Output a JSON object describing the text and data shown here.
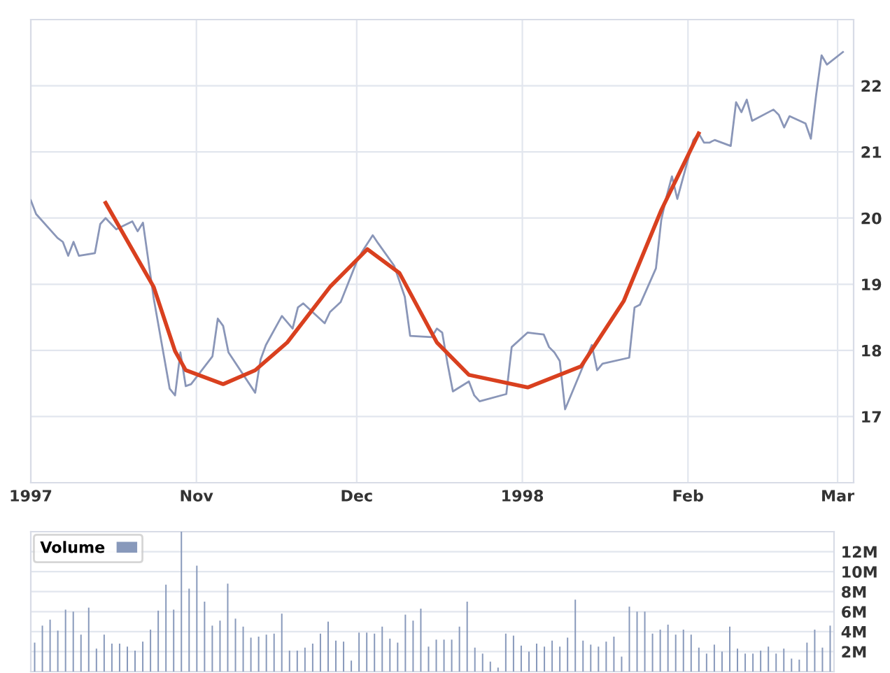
{
  "chart_data": [
    {
      "type": "line",
      "xlim": [
        "1997-10-01",
        "1998-03-04"
      ],
      "ylim": [
        16,
        23
      ],
      "yticks": [
        17,
        18,
        19,
        20,
        21,
        22
      ],
      "grid": true,
      "marker": "none",
      "line_style": "solid",
      "xticks": [
        {
          "value": "1997-10-01",
          "label": "1997"
        },
        {
          "value": "1997-11-01",
          "label": "Nov"
        },
        {
          "value": "1997-12-01",
          "label": "Dec"
        },
        {
          "value": "1998-01-01",
          "label": "1998"
        },
        {
          "value": "1998-02-01",
          "label": "Feb"
        },
        {
          "value": "1998-03-01",
          "label": "Mar"
        }
      ],
      "series": [
        {
          "color": "#8a96b8",
          "x": [
            "1997-10-01",
            "1997-10-02",
            "1997-10-06",
            "1997-10-07",
            "1997-10-08",
            "1997-10-09",
            "1997-10-10",
            "1997-10-13",
            "1997-10-14",
            "1997-10-15",
            "1997-10-17",
            "1997-10-20",
            "1997-10-21",
            "1997-10-22",
            "1997-10-24",
            "1997-10-27",
            "1997-10-28",
            "1997-10-29",
            "1997-10-30",
            "1997-10-31",
            "1997-11-04",
            "1997-11-05",
            "1997-11-06",
            "1997-11-07",
            "1997-11-12",
            "1997-11-13",
            "1997-11-14",
            "1997-11-17",
            "1997-11-19",
            "1997-11-20",
            "1997-11-21",
            "1997-11-25",
            "1997-11-26",
            "1997-11-28",
            "1997-12-01",
            "1997-12-02",
            "1997-12-04",
            "1997-12-05",
            "1997-12-08",
            "1997-12-10",
            "1997-12-11",
            "1997-12-15",
            "1997-12-16",
            "1997-12-17",
            "1997-12-18",
            "1997-12-19",
            "1997-12-22",
            "1997-12-23",
            "1997-12-24",
            "1997-12-29",
            "1997-12-30",
            "1998-01-02",
            "1998-01-05",
            "1998-01-06",
            "1998-01-07",
            "1998-01-08",
            "1998-01-09",
            "1998-01-14",
            "1998-01-15",
            "1998-01-16",
            "1998-01-21",
            "1998-01-22",
            "1998-01-23",
            "1998-01-26",
            "1998-01-27",
            "1998-01-28",
            "1998-01-29",
            "1998-01-30",
            "1998-02-02",
            "1998-02-03",
            "1998-02-04",
            "1998-02-05",
            "1998-02-06",
            "1998-02-09",
            "1998-02-10",
            "1998-02-11",
            "1998-02-12",
            "1998-02-13",
            "1998-02-17",
            "1998-02-18",
            "1998-02-19",
            "1998-02-20",
            "1998-02-23",
            "1998-02-24",
            "1998-02-25",
            "1998-02-26",
            "1998-02-27",
            "1998-03-02"
          ],
          "values": [
            20.27,
            20.06,
            19.7,
            19.64,
            19.43,
            19.64,
            19.43,
            19.47,
            19.91,
            20.0,
            19.83,
            19.95,
            19.8,
            19.93,
            18.79,
            17.42,
            17.32,
            17.97,
            17.46,
            17.49,
            17.91,
            18.48,
            18.37,
            17.97,
            17.36,
            17.86,
            18.08,
            18.52,
            18.33,
            18.65,
            18.71,
            18.41,
            18.58,
            18.73,
            19.34,
            19.49,
            19.74,
            19.62,
            19.28,
            18.81,
            18.22,
            18.2,
            18.33,
            18.27,
            17.8,
            17.38,
            17.53,
            17.32,
            17.23,
            17.34,
            18.05,
            18.27,
            18.24,
            18.05,
            17.97,
            17.84,
            17.11,
            18.08,
            17.7,
            17.8,
            17.89,
            18.65,
            18.69,
            19.24,
            19.97,
            20.33,
            20.63,
            20.29,
            21.18,
            21.28,
            21.14,
            21.14,
            21.18,
            21.09,
            21.75,
            21.6,
            21.79,
            21.47,
            21.64,
            21.56,
            21.37,
            21.54,
            21.43,
            21.2,
            21.87,
            22.46,
            22.32,
            22.51
          ]
        },
        {
          "color": "#d9401f",
          "x": [
            "1997-10-15",
            "1997-10-24",
            "1997-10-28",
            "1997-10-30",
            "1997-11-06",
            "1997-11-12",
            "1997-11-18",
            "1997-11-26",
            "1997-12-03",
            "1997-12-09",
            "1997-12-16",
            "1997-12-22",
            "1998-01-02",
            "1998-01-12",
            "1998-01-20",
            "1998-01-27",
            "1998-02-03"
          ],
          "values": [
            20.23,
            18.96,
            17.99,
            17.7,
            17.49,
            17.7,
            18.12,
            18.96,
            19.53,
            19.17,
            18.12,
            17.63,
            17.44,
            17.76,
            18.75,
            20.12,
            21.28
          ]
        }
      ]
    },
    {
      "type": "bar",
      "ylim": [
        0,
        14
      ],
      "grid": "y",
      "legend": "top left",
      "tick_labels": "y",
      "categories": [
        null,
        null,
        null,
        null,
        null,
        null,
        null,
        null,
        null,
        null,
        null,
        null,
        null,
        null,
        null,
        null,
        null,
        null,
        null,
        null,
        null,
        null,
        null,
        null,
        null,
        null,
        null,
        null,
        null,
        null,
        null,
        null,
        null,
        null,
        null,
        null,
        null,
        null,
        null,
        null,
        null,
        null,
        null,
        null,
        null,
        null,
        null,
        null,
        null,
        null,
        null,
        null,
        null,
        null,
        null,
        null,
        null,
        null,
        null,
        null,
        null,
        null,
        null,
        null,
        null,
        null,
        null,
        null,
        null,
        null,
        null,
        null,
        null,
        null,
        null,
        null,
        null,
        null,
        null,
        null,
        null,
        null,
        null,
        null,
        null,
        null,
        null,
        null,
        null,
        null,
        null,
        null,
        null,
        null,
        null,
        null,
        null,
        null,
        null,
        null,
        null,
        null,
        null,
        null
      ],
      "yticks": [
        {
          "value": 2,
          "label": "2M"
        },
        {
          "value": 4,
          "label": "4M"
        },
        {
          "value": 6,
          "label": "6M"
        },
        {
          "value": 8,
          "label": "8M"
        },
        {
          "value": 10,
          "label": "10M"
        },
        {
          "value": 12,
          "label": "12M"
        }
      ],
      "series": [
        {
          "name": "Volume",
          "color": "#8899bb",
          "values": [
            2.9,
            4.6,
            5.2,
            4.1,
            6.2,
            6.0,
            3.7,
            6.4,
            2.3,
            3.7,
            2.8,
            2.8,
            2.5,
            2.1,
            3.0,
            4.2,
            6.1,
            8.7,
            6.2,
            14.0,
            8.3,
            10.6,
            7.0,
            4.6,
            5.1,
            8.8,
            5.3,
            4.5,
            3.4,
            3.5,
            3.7,
            3.8,
            5.8,
            2.1,
            2.1,
            2.4,
            2.8,
            3.8,
            5.0,
            3.1,
            3.0,
            1.1,
            3.9,
            3.9,
            3.8,
            4.5,
            3.3,
            2.9,
            5.7,
            5.1,
            6.3,
            2.5,
            3.2,
            3.2,
            3.2,
            4.5,
            7.0,
            2.4,
            1.8,
            1.0,
            0.4,
            3.8,
            3.6,
            2.6,
            2.0,
            2.8,
            2.5,
            3.1,
            2.5,
            3.4,
            7.2,
            3.1,
            2.7,
            2.5,
            3.0,
            3.5,
            1.5,
            6.5,
            6.0,
            6.0,
            3.8,
            4.2,
            4.7,
            3.7,
            4.2,
            3.7,
            2.4,
            1.8,
            2.7,
            2.0,
            4.5,
            2.3,
            1.8,
            1.8,
            2.1,
            2.5,
            1.8,
            2.3,
            1.3,
            1.2,
            2.9,
            4.2,
            2.4,
            4.6
          ]
        }
      ]
    }
  ]
}
